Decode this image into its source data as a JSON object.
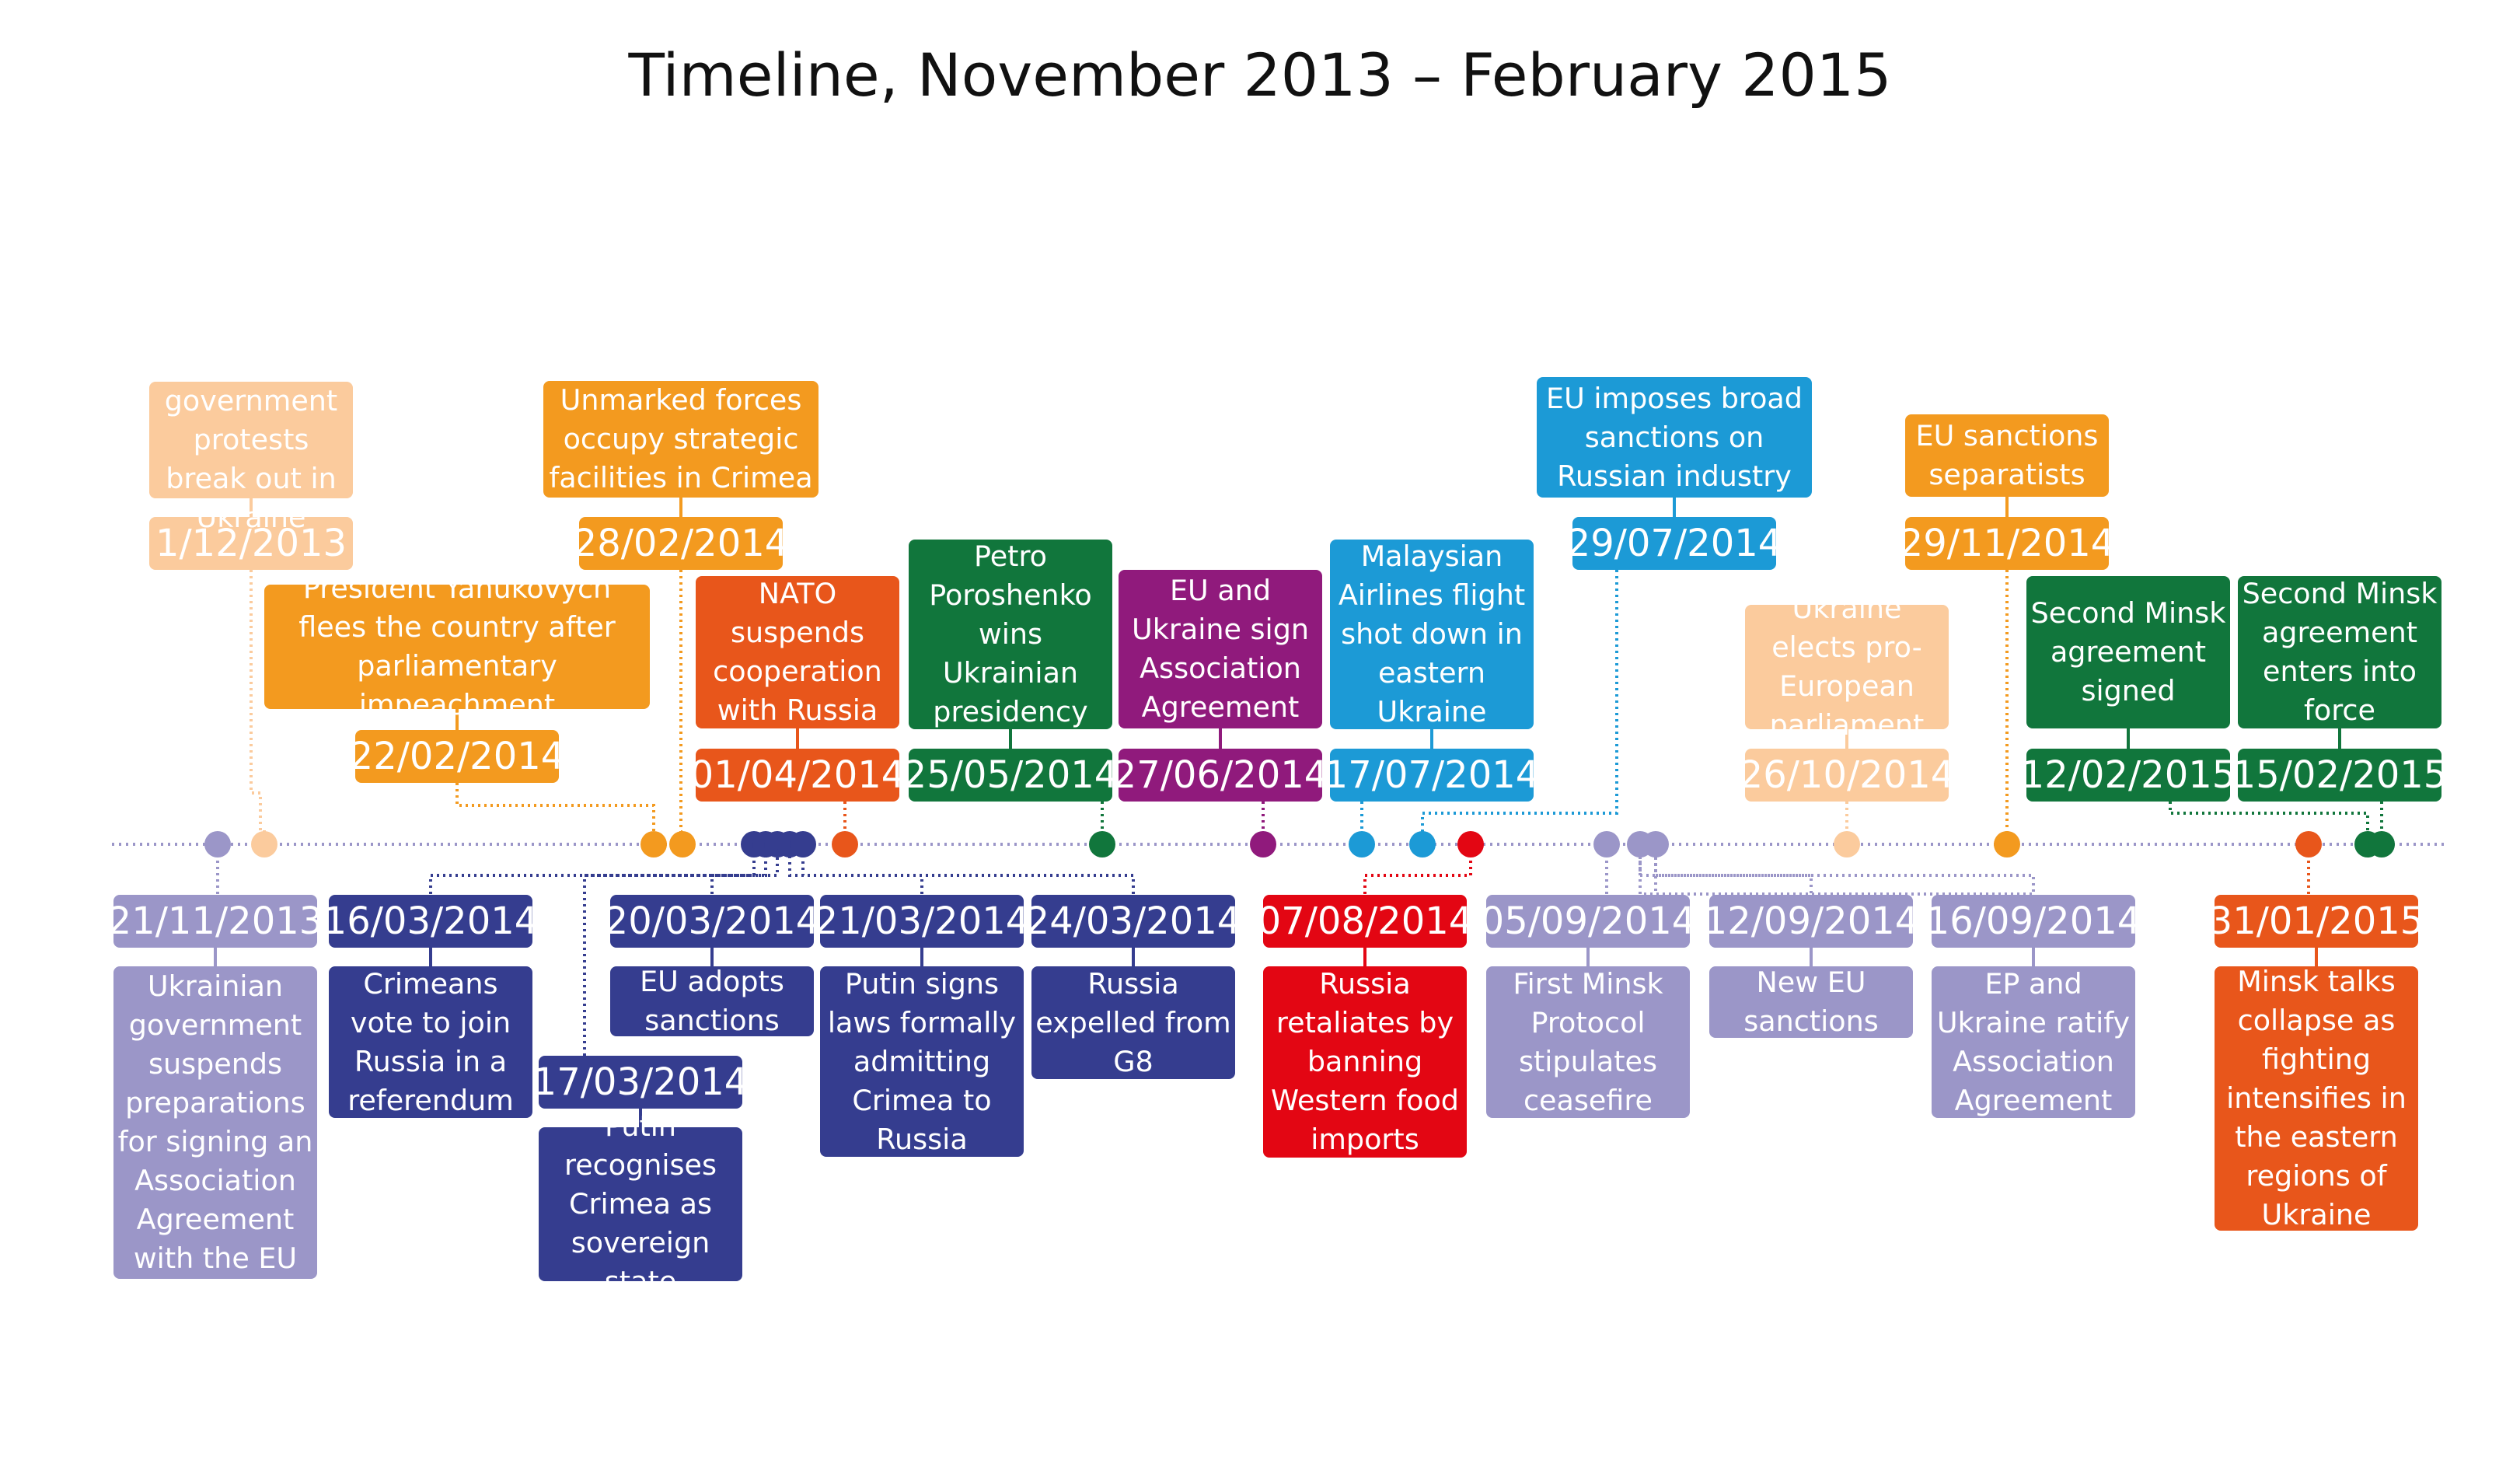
{
  "title": "Timeline, November 2013 – February 2015",
  "colors": {
    "axis": "#9b96c8",
    "peach": "#fbcb9d",
    "orange": "#f39a1f",
    "red_orange": "#e8561b",
    "navy": "#353d8f",
    "green": "#11763c",
    "purple": "#901a7c",
    "blue": "#1c9ad6",
    "red": "#e30613",
    "lavender": "#9b96c8"
  },
  "events": [
    {
      "id": "e01",
      "date": "21/11/2013",
      "text": "Ukrainian government suspends preparations for signing an Association Agreement with the EU",
      "color": "lavender"
    },
    {
      "id": "e02",
      "date": "1/12/2013",
      "text": "Anti-government protests break out in Ukraine",
      "color": "peach"
    },
    {
      "id": "e03",
      "date": "22/02/2014",
      "text": "President Yanukovych flees the country after parliamentary impeachment",
      "color": "orange"
    },
    {
      "id": "e04",
      "date": "28/02/2014",
      "text": "Unmarked forces occupy strategic facilities in Crimea",
      "color": "orange"
    },
    {
      "id": "e05",
      "date": "16/03/2014",
      "text": "Crimeans vote to join Russia in a referendum",
      "color": "navy"
    },
    {
      "id": "e06",
      "date": "17/03/2014",
      "text": "Putin recognises Crimea as sovereign state",
      "color": "navy"
    },
    {
      "id": "e07",
      "date": "20/03/2014",
      "text": "EU adopts sanctions",
      "color": "navy"
    },
    {
      "id": "e08",
      "date": "21/03/2014",
      "text": "Putin signs laws formally admitting Crimea to Russia",
      "color": "navy"
    },
    {
      "id": "e09",
      "date": "24/03/2014",
      "text": "Russia expelled from G8",
      "color": "navy"
    },
    {
      "id": "e10",
      "date": "01/04/2014",
      "text": "NATO suspends cooperation with Russia",
      "color": "red_orange"
    },
    {
      "id": "e11",
      "date": "25/05/2014",
      "text": "Petro Poroshenko wins Ukrainian presidency",
      "color": "green"
    },
    {
      "id": "e12",
      "date": "27/06/2014",
      "text": "EU and Ukraine sign Association Agreement",
      "color": "purple"
    },
    {
      "id": "e13",
      "date": "17/07/2014",
      "text": "Malaysian Airlines flight shot down in eastern Ukraine",
      "color": "blue"
    },
    {
      "id": "e14",
      "date": "29/07/2014",
      "text": "EU imposes broad sanctions on Russian industry",
      "color": "blue"
    },
    {
      "id": "e15",
      "date": "07/08/2014",
      "text": "Russia retaliates by banning Western food imports",
      "color": "red"
    },
    {
      "id": "e16",
      "date": "05/09/2014",
      "text": "First Minsk Protocol stipulates ceasefire",
      "color": "lavender"
    },
    {
      "id": "e17",
      "date": "12/09/2014",
      "text": "New EU sanctions",
      "color": "lavender"
    },
    {
      "id": "e18",
      "date": "16/09/2014",
      "text": "EP and Ukraine ratify Association Agreement",
      "color": "lavender"
    },
    {
      "id": "e19",
      "date": "26/10/2014",
      "text": "Ukraine elects pro-European parliament",
      "color": "peach"
    },
    {
      "id": "e20",
      "date": "29/11/2014",
      "text": "EU sanctions separatists",
      "color": "orange"
    },
    {
      "id": "e21",
      "date": "31/01/2015",
      "text": "Minsk talks collapse as fighting intensifies in the eastern regions of Ukraine",
      "color": "red_orange"
    },
    {
      "id": "e22",
      "date": "12/02/2015",
      "text": "Second Minsk agreement signed",
      "color": "green"
    },
    {
      "id": "e23",
      "date": "15/02/2015",
      "text": "Second Minsk agreement enters into force",
      "color": "green"
    }
  ]
}
